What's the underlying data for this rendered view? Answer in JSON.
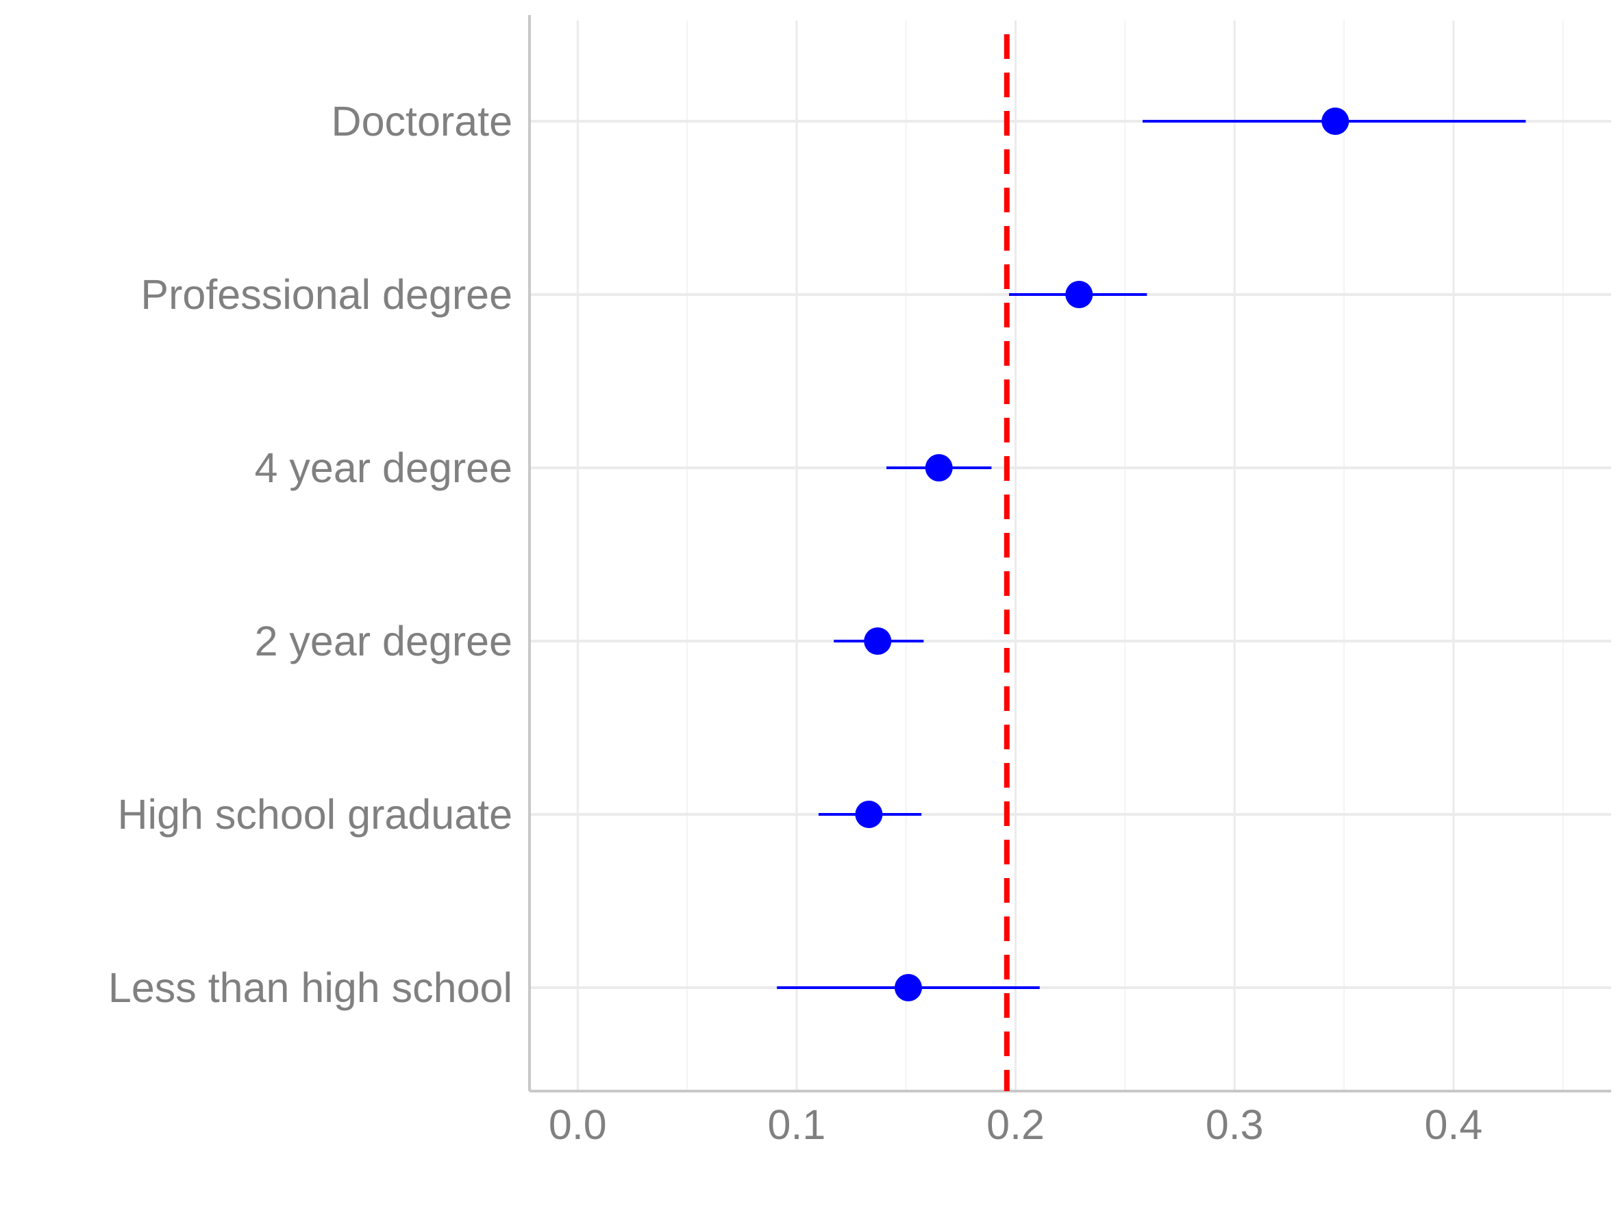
{
  "chart_data": {
    "type": "scatter",
    "title": "",
    "xlabel": "",
    "ylabel": "",
    "categories": [
      "Less than high school",
      "High school graduate",
      "2 year degree",
      "4 year degree",
      "Professional degree",
      "Doctorate"
    ],
    "series": [
      {
        "estimates": [
          0.151,
          0.133,
          0.137,
          0.165,
          0.229,
          0.346
        ],
        "lower": [
          0.091,
          0.11,
          0.117,
          0.141,
          0.197,
          0.258
        ],
        "upper": [
          0.211,
          0.157,
          0.158,
          0.189,
          0.26,
          0.433
        ]
      }
    ],
    "reference_line": {
      "value": 0.196,
      "style": "dashed"
    },
    "xlim": [
      -0.022,
      0.472
    ],
    "x_ticks": [
      0.0,
      0.1,
      0.2,
      0.3,
      0.4
    ],
    "x_tick_labels": [
      "0.0",
      "0.1",
      "0.2",
      "0.3",
      "0.4"
    ],
    "grid": true,
    "legend": "none",
    "colors": {
      "points": "#0000ff",
      "reference_line": "#ff0000",
      "text": "#808080",
      "axis": "#c8c8c8",
      "grid_major": "#ebebeb",
      "grid_minor": "#f3f3f3"
    }
  }
}
